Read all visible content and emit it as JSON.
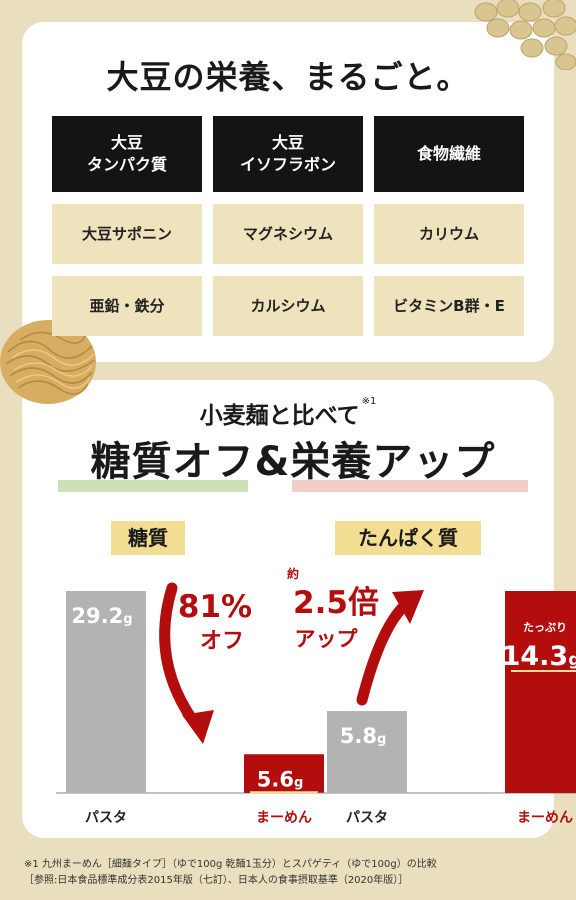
{
  "nutrition": {
    "headline": "大豆の栄養、まるごと。",
    "cells": [
      {
        "text": "大豆\nタンパク質",
        "style": "dark"
      },
      {
        "text": "大豆\nイソフラボン",
        "style": "dark"
      },
      {
        "text": "食物繊維",
        "style": "dark"
      },
      {
        "text": "大豆サポニン",
        "style": "light"
      },
      {
        "text": "マグネシウム",
        "style": "light"
      },
      {
        "text": "カリウム",
        "style": "light"
      },
      {
        "text": "亜鉛・鉄分",
        "style": "light"
      },
      {
        "text": "カルシウム",
        "style": "light"
      },
      {
        "text": "ビタミンB群・E",
        "style": "light"
      }
    ]
  },
  "comparison": {
    "subtitle": "小麦麺と比べて",
    "subtitle_note": "※1",
    "title": "糖質オフ&栄養アップ"
  },
  "chart_data": [
    {
      "type": "bar",
      "title": "糖質",
      "categories": [
        "パスタ",
        "まーめん"
      ],
      "values": [
        29.2,
        5.6
      ],
      "value_labels": [
        "29.2",
        "5.6"
      ],
      "unit": "g",
      "ylim": [
        0,
        30
      ],
      "colors": [
        "#b3b3b3",
        "#b30d0d"
      ],
      "annotation": {
        "line1": "81%",
        "line2": "オフ"
      }
    },
    {
      "type": "bar",
      "title": "たんぱく質",
      "categories": [
        "パスタ",
        "まーめん"
      ],
      "values": [
        5.8,
        14.3
      ],
      "value_labels": [
        "5.8",
        "14.3"
      ],
      "unit": "g",
      "ylim": [
        0,
        15
      ],
      "colors": [
        "#b3b3b3",
        "#b30d0d"
      ],
      "bar_label_prefix": "たっぷり",
      "annotation": {
        "prefix": "約",
        "line1": "2.5倍",
        "line2": "アップ"
      }
    }
  ],
  "footnote": {
    "line1": "※1 九州まーめん［細麺タイプ］（ゆで100g 乾麺1玉分）とスパゲティ（ゆで100g）の比較",
    "line2": "［参照:日本食品標準成分表2015年版（七訂）、日本人の食事摂取基準（2020年版）］"
  }
}
